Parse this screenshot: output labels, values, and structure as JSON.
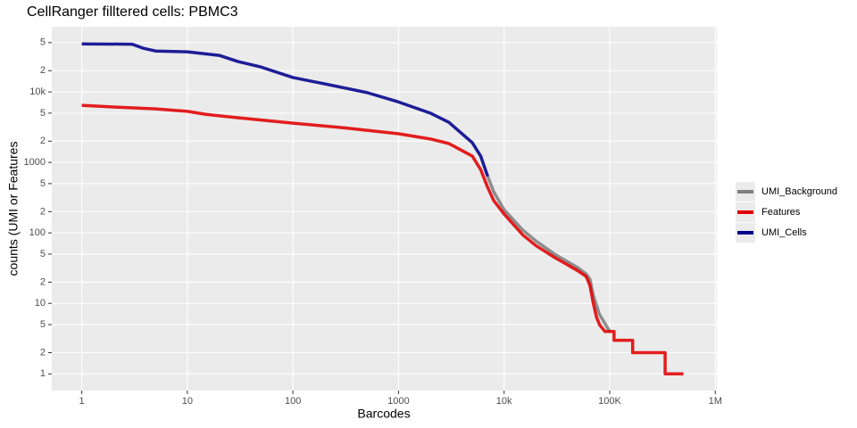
{
  "chart_data": {
    "type": "line",
    "title": "CellRanger filltered cells: PBMC3",
    "x_label": "Barcodes",
    "y_label": "counts (UMI or Features",
    "log_x": true,
    "log_y": true,
    "grid": true,
    "legend": "right",
    "xlim": [
      0.52,
      1035000
    ],
    "ylim": [
      0.58,
      84000
    ],
    "xticks": [
      1,
      10,
      100,
      1000,
      {
        "value": 10000,
        "label": "10k"
      },
      {
        "value": 100000,
        "label": "100K"
      },
      {
        "value": 1000000,
        "label": "1M"
      }
    ],
    "yticks": [
      1,
      2,
      5,
      10,
      {
        "value": 20,
        "label": "2"
      },
      {
        "value": 50,
        "label": "5"
      },
      100,
      {
        "value": 200,
        "label": "2"
      },
      {
        "value": 500,
        "label": "5"
      },
      1000,
      {
        "value": 2000,
        "label": "2"
      },
      {
        "value": 5000,
        "label": "5"
      },
      {
        "value": 10000,
        "label": "10k"
      },
      {
        "value": 20000,
        "label": "2"
      },
      {
        "value": 50000,
        "label": "5"
      }
    ],
    "series": [
      {
        "name": "UMI_Background",
        "color": "#808080",
        "x": [
          7000,
          8000,
          10000,
          15000,
          20000,
          30000,
          50000,
          60000,
          65000,
          70000,
          80000,
          100000
        ],
        "values": [
          630,
          380,
          213,
          110,
          77,
          50,
          32,
          26,
          22,
          13,
          7,
          4
        ]
      },
      {
        "name": "Features",
        "color": "#e00000",
        "x": [
          1,
          2,
          5,
          10,
          15,
          30,
          100,
          300,
          1000,
          2000,
          3000,
          5000,
          6000,
          7000,
          8000,
          10000,
          15000,
          20000,
          30000,
          50000,
          60000,
          65000,
          70000,
          75000,
          80000,
          90000,
          110000,
          110000,
          165000,
          165000,
          335000,
          335000,
          500000
        ],
        "values": [
          6450,
          6100,
          5750,
          5300,
          4800,
          4300,
          3600,
          3100,
          2550,
          2150,
          1850,
          1230,
          790,
          440,
          285,
          185,
          94,
          66,
          45,
          29,
          24,
          18,
          10,
          6.4,
          5,
          4,
          4,
          3,
          3,
          2,
          2,
          1,
          1
        ]
      },
      {
        "name": "UMI_Cells",
        "color": "#00008b",
        "x": [
          1,
          3,
          3.8,
          5,
          10,
          20,
          30,
          50,
          100,
          200,
          500,
          1000,
          2000,
          3000,
          5000,
          6000,
          7000
        ],
        "values": [
          48000,
          47500,
          41700,
          38000,
          37000,
          33000,
          27000,
          22500,
          16000,
          13000,
          9800,
          7200,
          5000,
          3700,
          1900,
          1230,
          630
        ]
      }
    ]
  }
}
